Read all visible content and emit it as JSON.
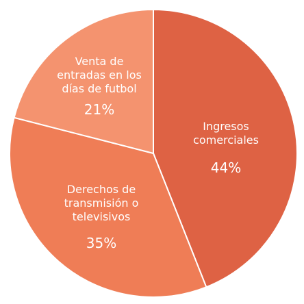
{
  "chart_data": {
    "type": "pie",
    "title": "",
    "slices": [
      {
        "label_lines": [
          "Ingresos",
          "comerciales"
        ],
        "value": 44,
        "value_label": "44%",
        "color": "#de6244"
      },
      {
        "label_lines": [
          "Derechos de",
          "transmisión o",
          "televisivos"
        ],
        "value": 35,
        "value_label": "35%",
        "color": "#ef7d56"
      },
      {
        "label_lines": [
          "Venta de",
          "entradas en los",
          "días de futbol"
        ],
        "value": 21,
        "value_label": "21%",
        "color": "#f4936f"
      }
    ],
    "slice_border_color": "#ffffff",
    "legend": "none"
  }
}
